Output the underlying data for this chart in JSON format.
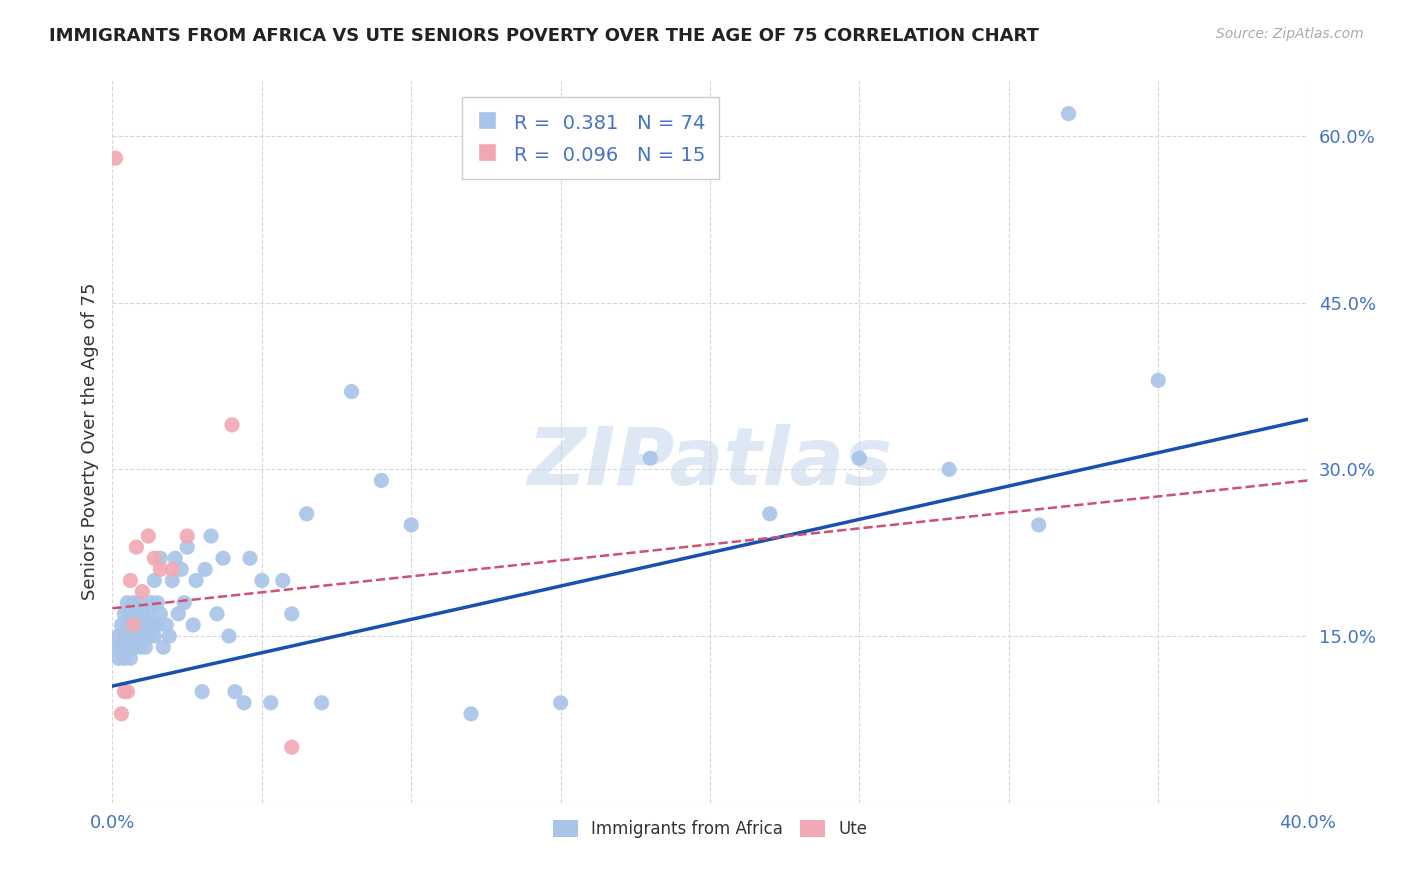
{
  "title": "IMMIGRANTS FROM AFRICA VS UTE SENIORS POVERTY OVER THE AGE OF 75 CORRELATION CHART",
  "source": "Source: ZipAtlas.com",
  "ylabel": "Seniors Poverty Over the Age of 75",
  "xlim": [
    0.0,
    0.4
  ],
  "ylim": [
    0.0,
    0.65
  ],
  "xticks": [
    0.0,
    0.05,
    0.1,
    0.15,
    0.2,
    0.25,
    0.3,
    0.35,
    0.4
  ],
  "yticks": [
    0.0,
    0.15,
    0.3,
    0.45,
    0.6
  ],
  "background_color": "#ffffff",
  "grid_color": "#d8d8d8",
  "watermark": "ZIPatlas",
  "blue_scatter_color": "#a8c4e8",
  "pink_scatter_color": "#f2a8b4",
  "blue_line_color": "#1a50b0",
  "pink_line_color": "#d05070",
  "legend_R1": "0.381",
  "legend_N1": "74",
  "legend_R2": "0.096",
  "legend_N2": "15",
  "legend_label1": "Immigrants from Africa",
  "legend_label2": "Ute",
  "blue_points_x": [
    0.001,
    0.002,
    0.002,
    0.003,
    0.003,
    0.004,
    0.004,
    0.004,
    0.005,
    0.005,
    0.005,
    0.006,
    0.006,
    0.006,
    0.007,
    0.007,
    0.007,
    0.008,
    0.008,
    0.009,
    0.009,
    0.009,
    0.01,
    0.01,
    0.011,
    0.011,
    0.012,
    0.012,
    0.013,
    0.013,
    0.014,
    0.014,
    0.015,
    0.015,
    0.016,
    0.016,
    0.017,
    0.018,
    0.019,
    0.02,
    0.021,
    0.022,
    0.023,
    0.024,
    0.025,
    0.027,
    0.028,
    0.03,
    0.031,
    0.033,
    0.035,
    0.037,
    0.039,
    0.041,
    0.044,
    0.046,
    0.05,
    0.053,
    0.057,
    0.06,
    0.065,
    0.07,
    0.08,
    0.09,
    0.1,
    0.12,
    0.15,
    0.18,
    0.22,
    0.25,
    0.28,
    0.31,
    0.32,
    0.35
  ],
  "blue_points_y": [
    0.14,
    0.13,
    0.15,
    0.14,
    0.16,
    0.13,
    0.15,
    0.17,
    0.14,
    0.16,
    0.18,
    0.13,
    0.15,
    0.17,
    0.14,
    0.16,
    0.18,
    0.15,
    0.17,
    0.14,
    0.16,
    0.18,
    0.15,
    0.17,
    0.14,
    0.16,
    0.15,
    0.17,
    0.16,
    0.18,
    0.15,
    0.2,
    0.16,
    0.18,
    0.17,
    0.22,
    0.14,
    0.16,
    0.15,
    0.2,
    0.22,
    0.17,
    0.21,
    0.18,
    0.23,
    0.16,
    0.2,
    0.1,
    0.21,
    0.24,
    0.17,
    0.22,
    0.15,
    0.1,
    0.09,
    0.22,
    0.2,
    0.09,
    0.2,
    0.17,
    0.26,
    0.09,
    0.37,
    0.29,
    0.25,
    0.08,
    0.09,
    0.31,
    0.26,
    0.31,
    0.3,
    0.25,
    0.62,
    0.38
  ],
  "pink_points_x": [
    0.001,
    0.003,
    0.004,
    0.005,
    0.006,
    0.007,
    0.008,
    0.01,
    0.012,
    0.014,
    0.016,
    0.02,
    0.025,
    0.04,
    0.06
  ],
  "pink_points_y": [
    0.58,
    0.08,
    0.1,
    0.1,
    0.2,
    0.16,
    0.23,
    0.19,
    0.24,
    0.22,
    0.21,
    0.21,
    0.24,
    0.34,
    0.05
  ],
  "blue_line_x": [
    0.0,
    0.4
  ],
  "blue_line_y": [
    0.105,
    0.345
  ],
  "pink_line_x": [
    0.0,
    0.4
  ],
  "pink_line_y": [
    0.175,
    0.29
  ]
}
